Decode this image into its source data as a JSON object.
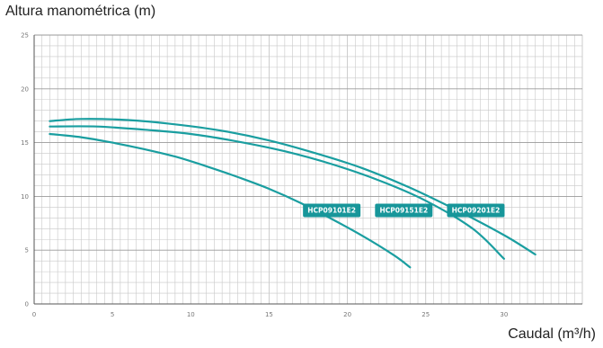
{
  "chart_data": {
    "type": "line",
    "xlabel": "Caudal (m³/h)",
    "ylabel": "Altura manométrica (m)",
    "xlim": [
      0,
      35
    ],
    "ylim": [
      0,
      25
    ],
    "xticks": [
      0,
      5,
      10,
      15,
      20,
      25,
      30
    ],
    "yticks": [
      0,
      5,
      10,
      15,
      20,
      25
    ],
    "minor_step": 0.5,
    "grid": true,
    "colors": {
      "curve": "#1a9ea0",
      "tag": "#17969a",
      "grid": "#c8c8c8",
      "axis": "#555555"
    },
    "series": [
      {
        "name": "HCP09101E2",
        "x": [
          1,
          3,
          5,
          7,
          9,
          11,
          13,
          15,
          17,
          19,
          21,
          23,
          24
        ],
        "values": [
          15.8,
          15.5,
          15.0,
          14.4,
          13.7,
          12.8,
          11.8,
          10.7,
          9.4,
          7.9,
          6.3,
          4.5,
          3.4
        ],
        "label_anchor": [
          19,
          8.7
        ]
      },
      {
        "name": "HCP09151E2",
        "x": [
          1,
          4,
          7,
          10,
          13,
          16,
          19,
          22,
          25,
          28,
          30
        ],
        "values": [
          16.5,
          16.5,
          16.2,
          15.8,
          15.1,
          14.2,
          13.0,
          11.5,
          9.6,
          7.0,
          4.2
        ],
        "label_anchor": [
          23.6,
          8.7
        ]
      },
      {
        "name": "HCP09201E2",
        "x": [
          1,
          3,
          6,
          9,
          12,
          15,
          18,
          21,
          24,
          27,
          30,
          32
        ],
        "values": [
          17.0,
          17.2,
          17.1,
          16.7,
          16.1,
          15.2,
          14.0,
          12.6,
          10.8,
          8.7,
          6.4,
          4.6
        ],
        "label_anchor": [
          28.2,
          8.7
        ]
      }
    ]
  }
}
